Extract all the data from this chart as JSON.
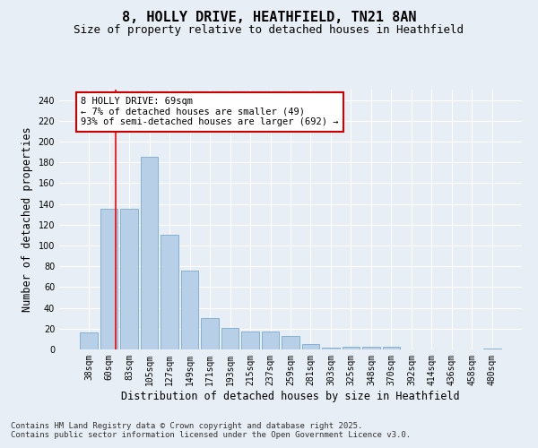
{
  "title": "8, HOLLY DRIVE, HEATHFIELD, TN21 8AN",
  "subtitle": "Size of property relative to detached houses in Heathfield",
  "xlabel": "Distribution of detached houses by size in Heathfield",
  "ylabel": "Number of detached properties",
  "categories": [
    "38sqm",
    "60sqm",
    "83sqm",
    "105sqm",
    "127sqm",
    "149sqm",
    "171sqm",
    "193sqm",
    "215sqm",
    "237sqm",
    "259sqm",
    "281sqm",
    "303sqm",
    "325sqm",
    "348sqm",
    "370sqm",
    "392sqm",
    "414sqm",
    "436sqm",
    "458sqm",
    "480sqm"
  ],
  "values": [
    16,
    135,
    135,
    185,
    110,
    76,
    30,
    21,
    17,
    17,
    13,
    5,
    2,
    3,
    3,
    3,
    0,
    0,
    0,
    0,
    1
  ],
  "bar_color": "#b8cfe8",
  "bar_edge_color": "#7aaad0",
  "ylim": [
    0,
    250
  ],
  "yticks": [
    0,
    20,
    40,
    60,
    80,
    100,
    120,
    140,
    160,
    180,
    200,
    220,
    240
  ],
  "red_line_x": 1.35,
  "annotation_title": "8 HOLLY DRIVE: 69sqm",
  "annotation_line1": "← 7% of detached houses are smaller (49)",
  "annotation_line2": "93% of semi-detached houses are larger (692) →",
  "annotation_box_color": "#ffffff",
  "annotation_box_edge": "#cc0000",
  "bg_color": "#e8eef5",
  "grid_color": "#ffffff",
  "footer": "Contains HM Land Registry data © Crown copyright and database right 2025.\nContains public sector information licensed under the Open Government Licence v3.0.",
  "title_fontsize": 11,
  "subtitle_fontsize": 9,
  "xlabel_fontsize": 8.5,
  "ylabel_fontsize": 8.5,
  "tick_fontsize": 7,
  "annotation_fontsize": 7.5,
  "footer_fontsize": 6.5
}
